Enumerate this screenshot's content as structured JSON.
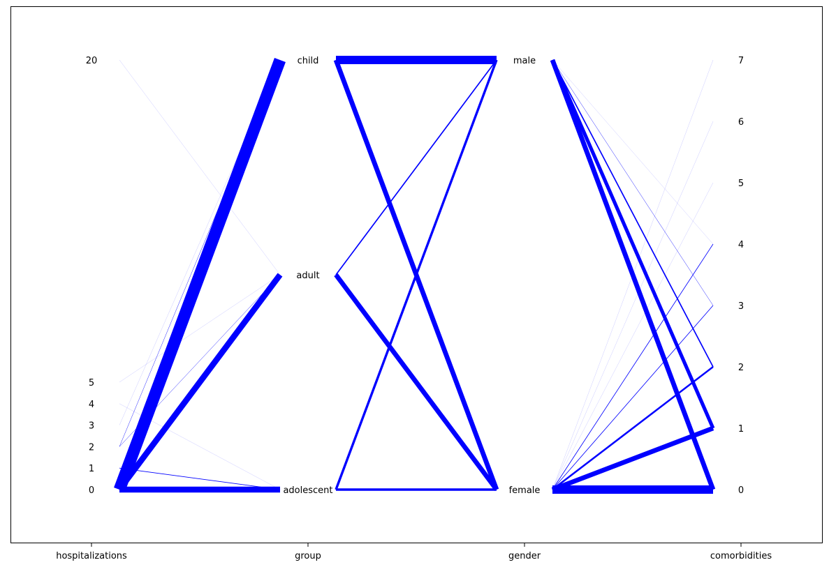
{
  "chart_data": {
    "type": "parallel_sets",
    "title": "",
    "axes": [
      {
        "name": "hospitalizations",
        "label": "hospitalizations",
        "categories": [
          "0",
          "1",
          "2",
          "3",
          "4",
          "5",
          "20"
        ],
        "values": [
          0,
          1,
          2,
          3,
          4,
          5,
          20
        ],
        "range": [
          0,
          20
        ]
      },
      {
        "name": "group",
        "label": "group",
        "categories": [
          "adolescent",
          "adult",
          "child"
        ]
      },
      {
        "name": "gender",
        "label": "gender",
        "categories": [
          "female",
          "male"
        ]
      },
      {
        "name": "comorbidities",
        "label": "comorbidities",
        "categories": [
          "0",
          "1",
          "2",
          "3",
          "4",
          "5",
          "6",
          "7"
        ],
        "values": [
          0,
          1,
          2,
          3,
          4,
          5,
          6,
          7
        ],
        "range": [
          0,
          7
        ]
      }
    ],
    "flows": [
      {
        "between": [
          "hospitalizations",
          "group"
        ],
        "links": [
          {
            "from": "0",
            "to": "child",
            "weight": 20
          },
          {
            "from": "0",
            "to": "adult",
            "weight": 10
          },
          {
            "from": "0",
            "to": "adolescent",
            "weight": 10
          },
          {
            "from": "1",
            "to": "adolescent",
            "weight": 1
          },
          {
            "from": "2",
            "to": "child",
            "weight": 0.5
          },
          {
            "from": "2",
            "to": "adult",
            "weight": 0.5
          },
          {
            "from": "3",
            "to": "child",
            "weight": 0.2
          },
          {
            "from": "4",
            "to": "adolescent",
            "weight": 0.2
          },
          {
            "from": "5",
            "to": "adult",
            "weight": 0.2
          },
          {
            "from": "20",
            "to": "adult",
            "weight": 0.2
          }
        ]
      },
      {
        "between": [
          "group",
          "gender"
        ],
        "links": [
          {
            "from": "child",
            "to": "male",
            "weight": 14
          },
          {
            "from": "child",
            "to": "female",
            "weight": 8
          },
          {
            "from": "adult",
            "to": "male",
            "weight": 2
          },
          {
            "from": "adult",
            "to": "female",
            "weight": 8
          },
          {
            "from": "adolescent",
            "to": "male",
            "weight": 4
          },
          {
            "from": "adolescent",
            "to": "female",
            "weight": 4
          }
        ]
      },
      {
        "between": [
          "gender",
          "comorbidities"
        ],
        "links": [
          {
            "from": "male",
            "to": "0",
            "weight": 8
          },
          {
            "from": "male",
            "to": "1",
            "weight": 6
          },
          {
            "from": "male",
            "to": "2",
            "weight": 2
          },
          {
            "from": "male",
            "to": "3",
            "weight": 0.5
          },
          {
            "from": "male",
            "to": "4",
            "weight": 0.3
          },
          {
            "from": "female",
            "to": "0",
            "weight": 14
          },
          {
            "from": "female",
            "to": "1",
            "weight": 8
          },
          {
            "from": "female",
            "to": "2",
            "weight": 3
          },
          {
            "from": "female",
            "to": "3",
            "weight": 1
          },
          {
            "from": "female",
            "to": "4",
            "weight": 1
          },
          {
            "from": "female",
            "to": "5",
            "weight": 0.2
          },
          {
            "from": "female",
            "to": "6",
            "weight": 0.2
          },
          {
            "from": "female",
            "to": "7",
            "weight": 0.2
          }
        ]
      }
    ],
    "line_color": "#0000ff",
    "grid": false,
    "legend": "none"
  }
}
